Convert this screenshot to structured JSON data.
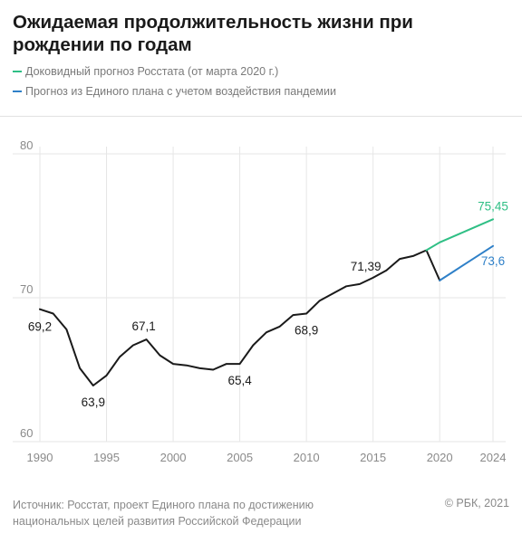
{
  "title": "Ожидаемая продолжительность жизни при рождении по годам",
  "legend": [
    {
      "label": "Доковидный прогноз Росстата (от марта 2020 г.)",
      "color": "#2fbf85"
    },
    {
      "label": "Прогноз из Единого плана с учетом воздействия пандемии",
      "color": "#2f80c8"
    }
  ],
  "footer": {
    "source": "Источник: Росстат, проект Единого плана по достижению национальных целей развития Российской Федерации",
    "copyright": "© РБК, 2021"
  },
  "chart_data": {
    "type": "line",
    "title": "Ожидаемая продолжительность жизни при рождении по годам",
    "xlabel": "",
    "ylabel": "",
    "xlim": [
      1990,
      2024
    ],
    "ylim": [
      60,
      80
    ],
    "y_ticks": [
      60,
      70,
      80
    ],
    "x_ticks": [
      1990,
      1995,
      2000,
      2005,
      2010,
      2015,
      2020,
      2024
    ],
    "grid": true,
    "series": [
      {
        "color": "#1a1a1a",
        "x": [
          1990,
          1991,
          1992,
          1993,
          1994,
          1995,
          1996,
          1997,
          1998,
          1999,
          2000,
          2001,
          2002,
          2003,
          2004,
          2005,
          2006,
          2007,
          2008,
          2009,
          2010,
          2011,
          2012,
          2013,
          2014,
          2015,
          2016,
          2017,
          2018,
          2019,
          2020
        ],
        "y": [
          69.2,
          68.9,
          67.8,
          65.1,
          63.9,
          64.6,
          65.9,
          66.7,
          67.1,
          66.0,
          65.4,
          65.3,
          65.1,
          65.0,
          65.4,
          65.4,
          66.7,
          67.6,
          68.0,
          68.8,
          68.9,
          69.8,
          70.3,
          70.8,
          70.95,
          71.39,
          71.9,
          72.7,
          72.9,
          73.3,
          71.2
        ]
      },
      {
        "name": "Доковидный прогноз Росстата (от марта 2020 г.)",
        "color": "#2fbf85",
        "x": [
          2019,
          2020,
          2021,
          2022,
          2023,
          2024
        ],
        "y": [
          73.3,
          73.85,
          74.25,
          74.65,
          75.05,
          75.45
        ]
      },
      {
        "name": "Прогноз из Единого плана с учетом воздействия пандемии",
        "color": "#2f80c8",
        "x": [
          2020,
          2021,
          2022,
          2023,
          2024
        ],
        "y": [
          71.2,
          71.8,
          72.4,
          73.0,
          73.6
        ]
      }
    ],
    "annotations": [
      {
        "text": "69,2",
        "x": 1990,
        "y": 69.2
      },
      {
        "text": "63,9",
        "x": 1994,
        "y": 63.9
      },
      {
        "text": "67,1",
        "x": 1998,
        "y": 67.1
      },
      {
        "text": "65,4",
        "x": 2005,
        "y": 65.4
      },
      {
        "text": "68,9",
        "x": 2010,
        "y": 68.9
      },
      {
        "text": "71,39",
        "x": 2015,
        "y": 71.39
      },
      {
        "text": "75,45",
        "x": 2024,
        "y": 75.45,
        "color": "#2fbf85"
      },
      {
        "text": "73,6",
        "x": 2024,
        "y": 73.6,
        "color": "#2f80c8"
      }
    ]
  }
}
